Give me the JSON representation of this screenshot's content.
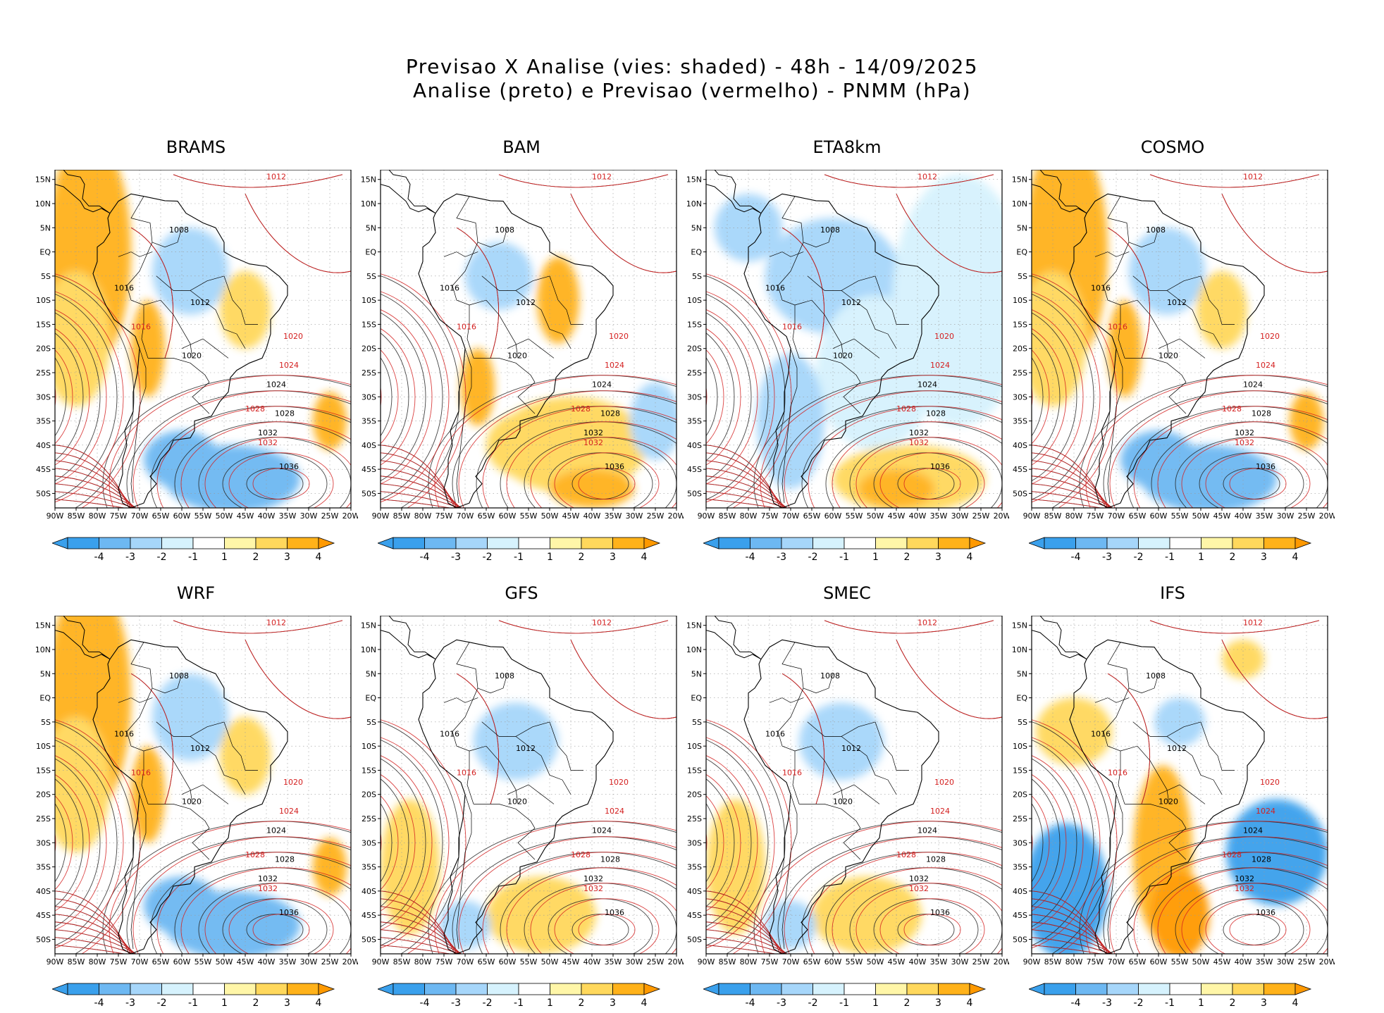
{
  "title": {
    "line1": "Previsao X Analise (vies: shaded) - 48h - 14/09/2025",
    "line2": "Analise (preto) e Previsao (vermelho) - PNMM (hPa)"
  },
  "lat_labels": [
    "15N",
    "10N",
    "5N",
    "EQ",
    "5S",
    "10S",
    "15S",
    "20S",
    "25S",
    "30S",
    "35S",
    "40S",
    "45S",
    "50S"
  ],
  "lon_labels": [
    "90W",
    "85W",
    "80W",
    "75W",
    "70W",
    "65W",
    "60W",
    "55W",
    "50W",
    "45W",
    "40W",
    "35W",
    "30W",
    "25W",
    "20W"
  ],
  "colorbar": {
    "labels": [
      "-4",
      "-3",
      "-2",
      "-1",
      "1",
      "2",
      "3",
      "4"
    ],
    "colors": [
      "#3aa0ec",
      "#6db8f2",
      "#a6d6fa",
      "#d6f2fd",
      "#ffffff",
      "#fff6a8",
      "#ffd85c",
      "#ffb21a",
      "#ff9900"
    ]
  },
  "isobar_labels": {
    "analysis": [
      "1008",
      "1012",
      "1016",
      "1020",
      "1024",
      "1028",
      "1032",
      "1036"
    ],
    "forecast": [
      "1012",
      "1016",
      "1020",
      "1024",
      "1028",
      "1032"
    ]
  },
  "panels": [
    {
      "id": "brams",
      "name": "BRAMS",
      "bias": "warm"
    },
    {
      "id": "bam",
      "name": "BAM",
      "bias": "mixed"
    },
    {
      "id": "eta8km",
      "name": "ETA8km",
      "bias": "cold"
    },
    {
      "id": "cosmo",
      "name": "COSMO",
      "bias": "warm"
    },
    {
      "id": "wrf",
      "name": "WRF",
      "bias": "warm"
    },
    {
      "id": "gfs",
      "name": "GFS",
      "bias": "weak"
    },
    {
      "id": "smec",
      "name": "SMEC",
      "bias": "weak"
    },
    {
      "id": "ifs",
      "name": "IFS",
      "bias": "strong"
    }
  ]
}
